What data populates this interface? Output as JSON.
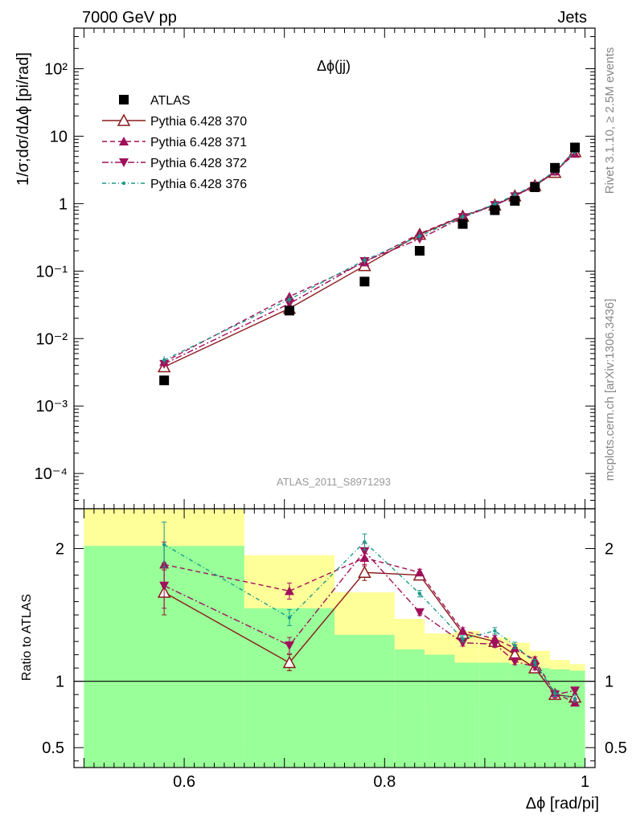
{
  "header": {
    "left": "7000 GeV pp",
    "right": "Jets"
  },
  "side_text": {
    "rivet": "Rivet 3.1.10, ≥ 2.5M events",
    "mcplots": "mcplots.cern.ch [arXiv:1306.3436]"
  },
  "analysis_id": "ATLAS_2011_S8971293",
  "colors": {
    "atlas": "#000000",
    "py370": "#8b1a1a",
    "py371": "#a0105a",
    "py372": "#a0105a",
    "py376": "#1a9a8a",
    "band_inner": "#99ff99",
    "band_outer": "#ffff99"
  },
  "chart_data": [
    {
      "type": "scatter",
      "title": "Δϕ(jj)",
      "xlabel": "",
      "ylabel": "1/σ;dσ/dΔϕ [pi/rad]",
      "yscale": "log",
      "xlim": [
        0.49,
        1.01
      ],
      "ylim": [
        3e-05,
        400
      ],
      "y_tick_labels": [
        "10⁻⁴",
        "10⁻³",
        "10⁻²",
        "10⁻¹",
        "1",
        "10",
        "10²"
      ],
      "y_ticks": [
        0.0001,
        0.001,
        0.01,
        0.1,
        1,
        10,
        100
      ],
      "legend_position": "top-left",
      "x": [
        0.58,
        0.705,
        0.78,
        0.835,
        0.878,
        0.91,
        0.93,
        0.95,
        0.97,
        0.99
      ],
      "series": [
        {
          "name": "ATLAS",
          "values": [
            0.0024,
            0.026,
            0.07,
            0.2,
            0.5,
            0.8,
            1.1,
            1.75,
            3.4,
            6.8
          ]
        },
        {
          "name": "Pythia 6.428 370",
          "values": [
            0.0038,
            0.028,
            0.12,
            0.35,
            0.65,
            0.95,
            1.3,
            1.85,
            2.9,
            5.9
          ]
        },
        {
          "name": "Pythia 6.428 371",
          "values": [
            0.0045,
            0.042,
            0.135,
            0.36,
            0.66,
            0.97,
            1.32,
            1.9,
            3.0,
            5.5
          ]
        },
        {
          "name": "Pythia 6.428 372",
          "values": [
            0.0042,
            0.033,
            0.14,
            0.3,
            0.63,
            0.95,
            1.28,
            1.85,
            3.0,
            6.1
          ]
        },
        {
          "name": "Pythia 6.428 376",
          "values": [
            0.0048,
            0.038,
            0.145,
            0.33,
            0.64,
            0.98,
            1.35,
            1.9,
            3.05,
            5.9
          ]
        }
      ]
    },
    {
      "type": "line",
      "title": "",
      "xlabel": "Δϕ [rad/pi]",
      "ylabel": "Ratio to ATLAS",
      "xlim": [
        0.49,
        1.01
      ],
      "ylim": [
        0.35,
        2.3
      ],
      "x_ticks": [
        0.6,
        0.8,
        1
      ],
      "x_tick_labels": [
        "0.6",
        "0.8",
        "1"
      ],
      "y_ticks": [
        0.5,
        1,
        2
      ],
      "y_tick_labels": [
        "0.5",
        "1",
        "2"
      ],
      "x": [
        0.58,
        0.705,
        0.78,
        0.835,
        0.878,
        0.91,
        0.93,
        0.95,
        0.97,
        0.99
      ],
      "series": [
        {
          "name": "Pythia 6.428 370",
          "values": [
            1.67,
            1.14,
            1.82,
            1.8,
            1.36,
            1.3,
            1.2,
            1.1,
            0.9,
            0.88
          ]
        },
        {
          "name": "Pythia 6.428 371",
          "values": [
            1.88,
            1.68,
            1.93,
            1.82,
            1.38,
            1.32,
            1.25,
            1.16,
            0.91,
            0.84
          ]
        },
        {
          "name": "Pythia 6.428 372",
          "values": [
            1.72,
            1.27,
            1.98,
            1.52,
            1.29,
            1.28,
            1.15,
            1.11,
            0.9,
            0.93
          ]
        },
        {
          "name": "Pythia 6.428 376",
          "values": [
            2.03,
            1.48,
            2.05,
            1.66,
            1.32,
            1.38,
            1.27,
            1.14,
            0.91,
            0.87
          ]
        }
      ],
      "bands": {
        "edges": [
          0.5,
          0.66,
          0.75,
          0.81,
          0.84,
          0.87,
          0.895,
          0.925,
          0.945,
          0.965,
          0.985,
          1.0
        ],
        "inner_low": [
          0.35,
          0.35,
          0.35,
          0.35,
          0.35,
          0.35,
          0.35,
          0.35,
          0.35,
          0.35,
          0.35
        ],
        "inner_high": [
          2.02,
          1.55,
          1.35,
          1.24,
          1.2,
          1.14,
          1.14,
          1.13,
          1.1,
          1.09,
          1.08
        ],
        "outer_low": [
          0.35,
          0.54,
          0.73,
          0.78,
          0.83,
          0.86,
          0.85,
          0.87,
          0.9,
          0.93,
          0.95
        ],
        "outer_high": [
          2.3,
          1.95,
          1.67,
          1.47,
          1.36,
          1.38,
          1.33,
          1.29,
          1.23,
          1.16,
          1.13
        ]
      }
    }
  ]
}
